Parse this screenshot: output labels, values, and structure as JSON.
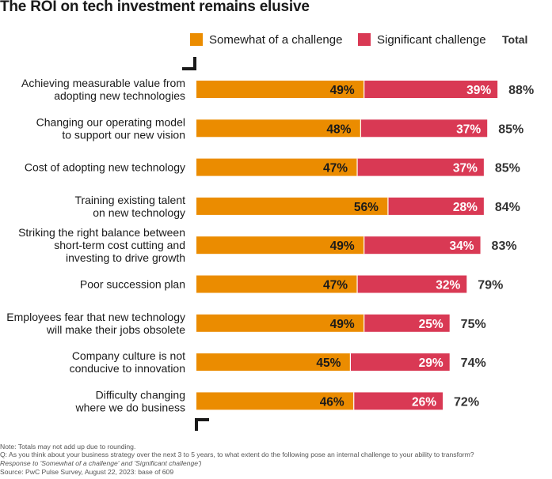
{
  "chart_data": {
    "type": "bar",
    "stacked": true,
    "orientation": "horizontal",
    "title": "The ROI on tech investment remains elusive",
    "categories": [
      [
        "Achieving measurable value from",
        "adopting new technologies"
      ],
      [
        "Changing our operating model",
        "to support our new vision"
      ],
      [
        "Cost of adopting new technology"
      ],
      [
        "Training existing talent",
        "on new technology"
      ],
      [
        "Striking the right balance between",
        "short-term cost cutting and",
        "investing to drive growth"
      ],
      [
        "Poor succession plan"
      ],
      [
        "Employees fear that new technology",
        "will make their jobs obsolete"
      ],
      [
        "Company culture is not",
        "conducive to innovation"
      ],
      [
        "Difficulty changing",
        "where we do business"
      ]
    ],
    "series": [
      {
        "name": "Somewhat of a challenge",
        "color": "#EB8C00",
        "values": [
          49,
          48,
          47,
          56,
          49,
          47,
          49,
          45,
          46
        ]
      },
      {
        "name": "Significant challenge",
        "color": "#D93954",
        "values": [
          39,
          37,
          37,
          28,
          34,
          32,
          25,
          29,
          26
        ]
      }
    ],
    "totals_header": "Total",
    "totals": [
      88,
      85,
      85,
      84,
      83,
      79,
      75,
      74,
      72
    ],
    "value_suffix": "%",
    "xlim": [
      0,
      100
    ],
    "legend_position": "top"
  },
  "footnotes": {
    "note": "Note: Totals may not add up due to rounding.",
    "question": "Q: As you think about your business strategy over the next 3 to 5 years, to what extent do the following pose an internal challenge to your ability to transform?",
    "response": "Response to 'Somewhat of a challenge' and 'Significant challenge')",
    "source": "Source: PwC Pulse Survey, August 22, 2023: base of 609"
  }
}
